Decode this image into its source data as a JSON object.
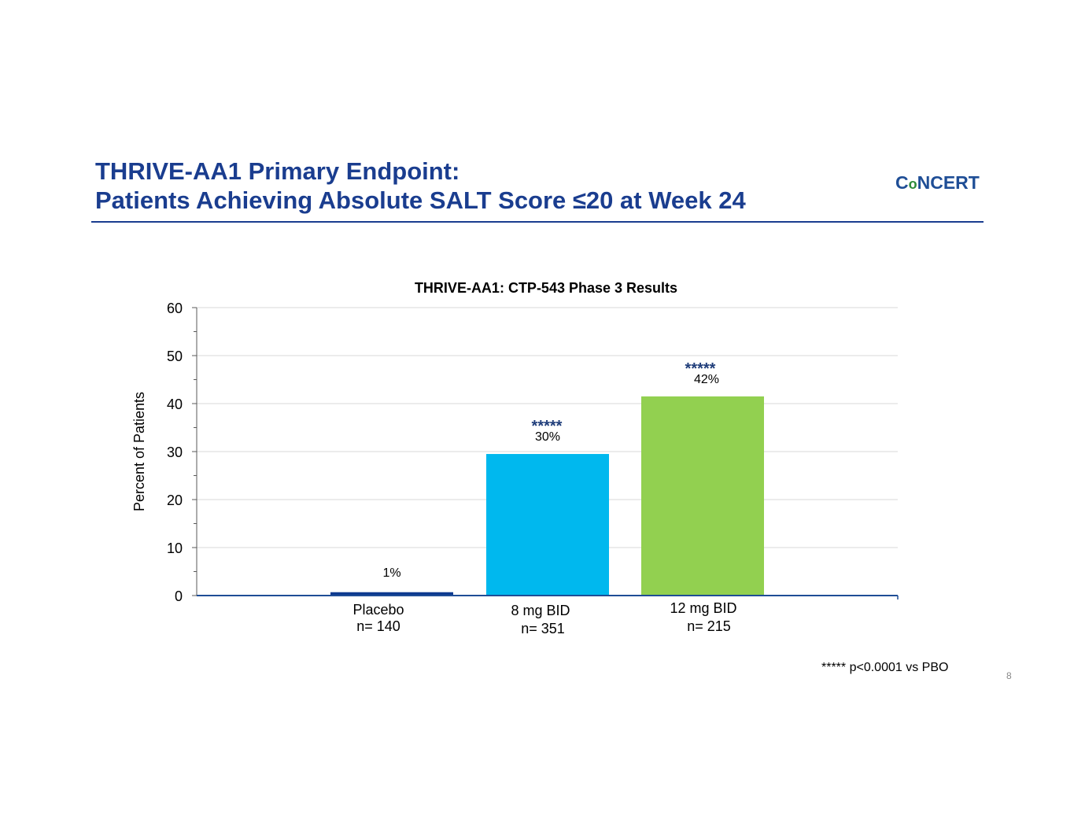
{
  "slide": {
    "title_line1": "THRIVE-AA1 Primary Endpoint:",
    "title_line2": "Patients Achieving Absolute SALT Score ≤20 at Week 24",
    "logo_c": "C",
    "logo_o": "o",
    "logo_rest": "NCERT",
    "footnote": "***** p<0.0001 vs PBO",
    "page_number": "8"
  },
  "colors": {
    "title": "#1a3d8f",
    "placebo": "#0d3a8f",
    "dose8": "#00b8ee",
    "dose12": "#92d050",
    "significance": "#1f3d7a"
  },
  "chart_data": {
    "type": "bar",
    "title": "THRIVE-AA1: CTP-543 Phase 3 Results",
    "ylabel": "Percent of Patients",
    "xlabel": "",
    "ylim": [
      0,
      60
    ],
    "yticks": [
      0,
      10,
      20,
      30,
      40,
      50,
      60
    ],
    "grid": true,
    "categories": [
      {
        "name": "Placebo",
        "n": "n= 140"
      },
      {
        "name": "8 mg BID",
        "n": "n= 351"
      },
      {
        "name": "12 mg BID",
        "n": "n= 215"
      }
    ],
    "values": [
      0.7,
      29.5,
      41.5
    ],
    "data_labels": [
      "1%",
      "30%",
      "42%"
    ],
    "significance": [
      "",
      "*****",
      "*****"
    ]
  }
}
